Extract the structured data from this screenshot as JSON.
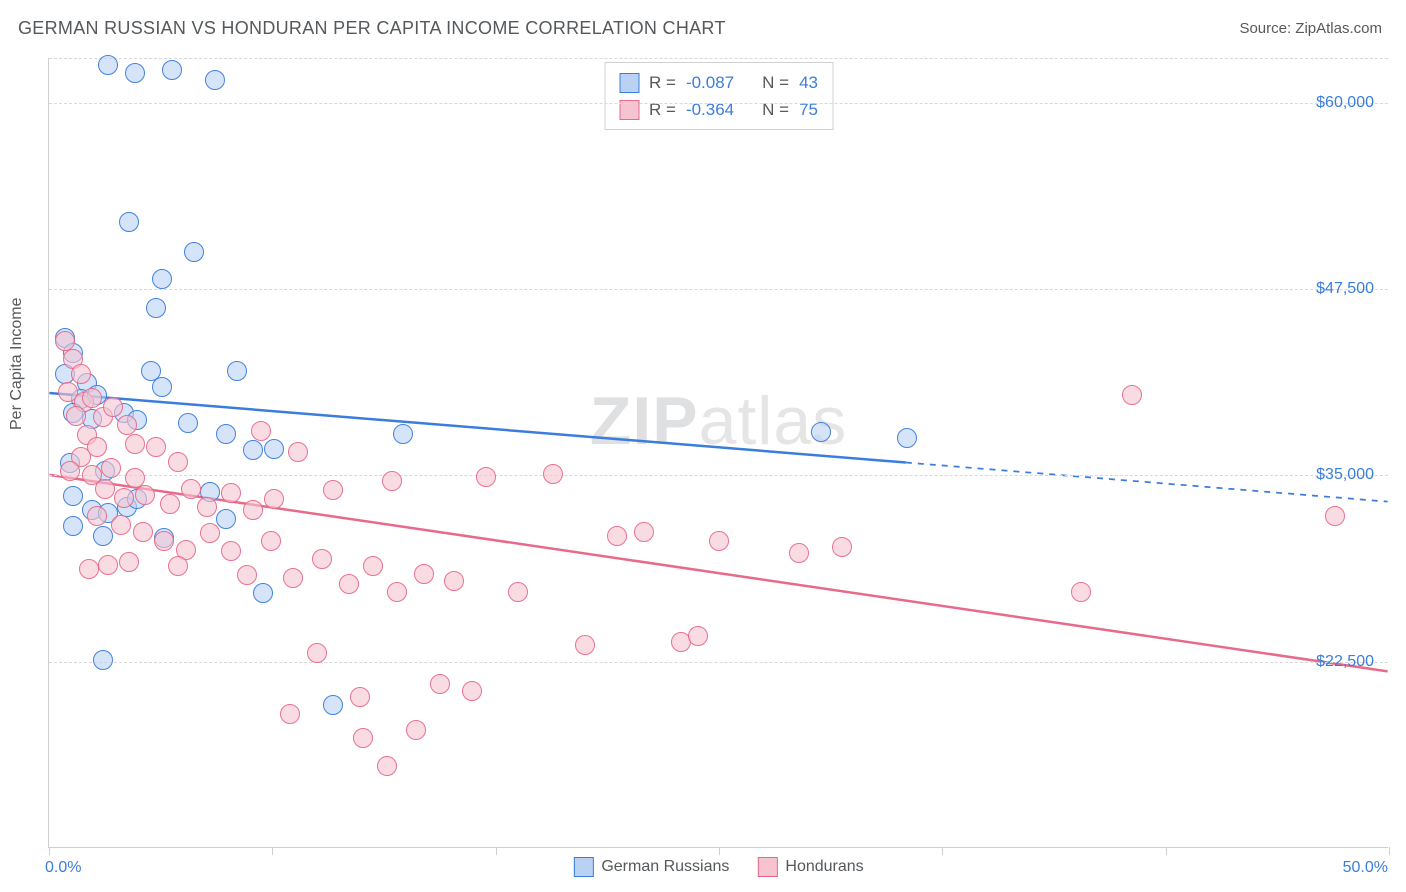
{
  "header": {
    "title": "GERMAN RUSSIAN VS HONDURAN PER CAPITA INCOME CORRELATION CHART",
    "source": "Source: ZipAtlas.com"
  },
  "watermark": {
    "bold": "ZIP",
    "light": "atlas"
  },
  "chart": {
    "type": "scatter",
    "ylabel": "Per Capita Income",
    "xlim": [
      0,
      50
    ],
    "ylim": [
      10000,
      63000
    ],
    "x_start_label": "0.0%",
    "x_end_label": "50.0%",
    "xtick_positions": [
      0,
      8.33,
      16.67,
      25,
      33.33,
      41.67,
      50
    ],
    "yticks": [
      {
        "value": 22500,
        "label": "$22,500"
      },
      {
        "value": 35000,
        "label": "$35,000"
      },
      {
        "value": 47500,
        "label": "$47,500"
      },
      {
        "value": 60000,
        "label": "$60,000"
      }
    ],
    "y_gridlines": [
      22500,
      35000,
      47500,
      60000,
      63000
    ],
    "grid_color": "#d8d8d8",
    "background_color": "#ffffff",
    "marker_radius": 10,
    "marker_stroke_width": 1.5,
    "marker_fill_opacity": 0.28,
    "series": [
      {
        "name": "German Russians",
        "color": "#3b7ddd",
        "fill": "#b9d2f4",
        "legend_label": "German Russians",
        "trend": {
          "y_at_xmin": 40500,
          "y_at_xmax": 33200,
          "solid_until_x": 32,
          "line_width": 2.5
        },
        "stats": {
          "R": "-0.087",
          "N": "43"
        },
        "points": [
          [
            2.2,
            62500
          ],
          [
            3.2,
            62000
          ],
          [
            4.6,
            62200
          ],
          [
            6.2,
            61500
          ],
          [
            3.0,
            52000
          ],
          [
            5.4,
            50000
          ],
          [
            4.2,
            48200
          ],
          [
            4.0,
            46200
          ],
          [
            0.6,
            44200
          ],
          [
            0.9,
            43200
          ],
          [
            0.6,
            41800
          ],
          [
            1.4,
            41200
          ],
          [
            1.2,
            40100
          ],
          [
            1.8,
            40400
          ],
          [
            0.9,
            39200
          ],
          [
            1.6,
            38800
          ],
          [
            3.8,
            42000
          ],
          [
            4.2,
            40900
          ],
          [
            7.0,
            42000
          ],
          [
            2.8,
            39200
          ],
          [
            3.3,
            38700
          ],
          [
            5.2,
            38500
          ],
          [
            6.6,
            37800
          ],
          [
            13.2,
            37800
          ],
          [
            7.6,
            36700
          ],
          [
            8.4,
            36800
          ],
          [
            0.8,
            35800
          ],
          [
            2.1,
            35300
          ],
          [
            0.9,
            33600
          ],
          [
            1.6,
            32700
          ],
          [
            2.2,
            32500
          ],
          [
            2.9,
            32900
          ],
          [
            3.3,
            33400
          ],
          [
            6.0,
            33900
          ],
          [
            6.6,
            32100
          ],
          [
            2.0,
            30900
          ],
          [
            0.9,
            31600
          ],
          [
            4.3,
            30800
          ],
          [
            8.0,
            27100
          ],
          [
            10.6,
            19600
          ],
          [
            2.0,
            22600
          ],
          [
            28.8,
            37900
          ],
          [
            32.0,
            37500
          ]
        ]
      },
      {
        "name": "Hondurans",
        "color": "#e86a8a",
        "fill": "#f6c4d1",
        "legend_label": "Hondurans",
        "trend": {
          "y_at_xmin": 35000,
          "y_at_xmax": 21800,
          "solid_until_x": 50,
          "line_width": 2.5
        },
        "stats": {
          "R": "-0.364",
          "N": "75"
        },
        "points": [
          [
            0.6,
            44000
          ],
          [
            0.9,
            42800
          ],
          [
            1.2,
            41800
          ],
          [
            0.7,
            40600
          ],
          [
            1.3,
            39900
          ],
          [
            1.0,
            39000
          ],
          [
            1.6,
            40200
          ],
          [
            2.0,
            38900
          ],
          [
            1.4,
            37700
          ],
          [
            2.4,
            39600
          ],
          [
            2.9,
            38400
          ],
          [
            1.8,
            36900
          ],
          [
            1.2,
            36200
          ],
          [
            0.8,
            35300
          ],
          [
            1.6,
            35000
          ],
          [
            2.3,
            35500
          ],
          [
            3.2,
            37100
          ],
          [
            4.0,
            36900
          ],
          [
            4.8,
            35900
          ],
          [
            3.2,
            34800
          ],
          [
            2.1,
            34100
          ],
          [
            2.8,
            33500
          ],
          [
            3.6,
            33700
          ],
          [
            4.5,
            33100
          ],
          [
            5.3,
            34100
          ],
          [
            5.9,
            32900
          ],
          [
            6.8,
            33800
          ],
          [
            7.6,
            32700
          ],
          [
            8.4,
            33400
          ],
          [
            9.3,
            36600
          ],
          [
            7.9,
            38000
          ],
          [
            1.8,
            32300
          ],
          [
            2.7,
            31700
          ],
          [
            3.5,
            31200
          ],
          [
            4.3,
            30600
          ],
          [
            5.1,
            30000
          ],
          [
            6.0,
            31100
          ],
          [
            6.8,
            29900
          ],
          [
            4.8,
            28900
          ],
          [
            3.0,
            29200
          ],
          [
            2.2,
            29000
          ],
          [
            1.5,
            28700
          ],
          [
            7.4,
            28300
          ],
          [
            8.3,
            30600
          ],
          [
            9.1,
            28100
          ],
          [
            10.2,
            29400
          ],
          [
            11.2,
            27700
          ],
          [
            12.1,
            28900
          ],
          [
            13.0,
            27200
          ],
          [
            14.0,
            28400
          ],
          [
            10.6,
            34000
          ],
          [
            12.8,
            34600
          ],
          [
            15.1,
            27900
          ],
          [
            16.3,
            34900
          ],
          [
            17.5,
            27200
          ],
          [
            18.8,
            35100
          ],
          [
            22.2,
            31200
          ],
          [
            23.6,
            23800
          ],
          [
            25.0,
            30600
          ],
          [
            20.0,
            23600
          ],
          [
            21.2,
            30900
          ],
          [
            28.0,
            29800
          ],
          [
            29.6,
            30200
          ],
          [
            11.6,
            20100
          ],
          [
            12.6,
            15500
          ],
          [
            13.7,
            17900
          ],
          [
            14.6,
            21000
          ],
          [
            15.8,
            20500
          ],
          [
            10.0,
            23100
          ],
          [
            9.0,
            19000
          ],
          [
            11.7,
            17400
          ],
          [
            38.5,
            27200
          ],
          [
            40.4,
            40400
          ],
          [
            48.0,
            32300
          ],
          [
            24.2,
            24200
          ]
        ]
      }
    ],
    "legend_top": {
      "r_label": "R =",
      "n_label": "N ="
    }
  }
}
